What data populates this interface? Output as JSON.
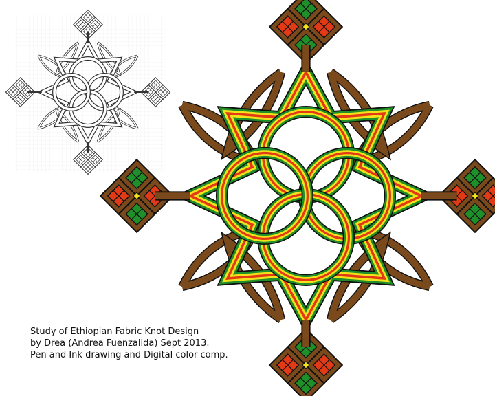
{
  "caption": {
    "line1": "Study of Ethiopian Fabric Knot Design",
    "line2": "by Drea (Andrea Fuenzalida) Sept 2013.",
    "line3": "Pen and Ink drawing and Digital color comp."
  },
  "colors": {
    "background": "#ffffff",
    "outline": "#111111",
    "brown": "#7a4a1c",
    "green": "#1f8f2a",
    "red": "#e23a16",
    "yellow": "#f2e21a",
    "sketch_line": "#333333",
    "grid": "#e6e6e6"
  },
  "icons": {
    "color_motif": "ethiopian-cross-knot",
    "sketch_motif": "pencil-sketch-knot"
  }
}
